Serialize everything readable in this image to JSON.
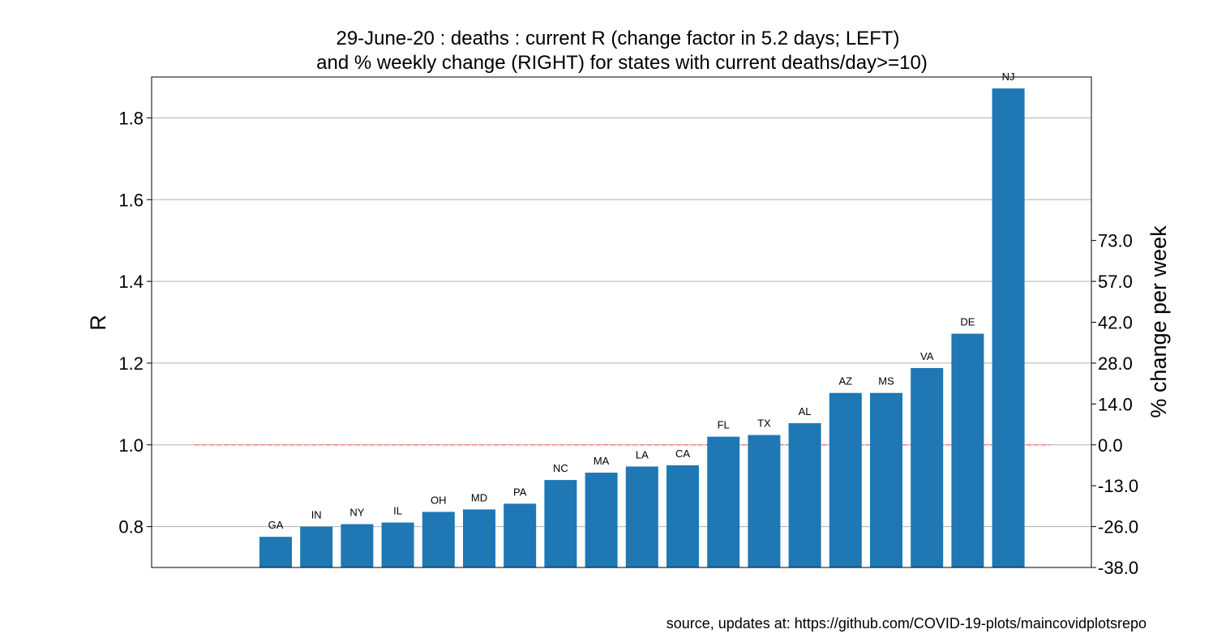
{
  "chart_data": {
    "type": "bar",
    "title_lines": [
      "29-June-20 : deaths : current R (change factor in 5.2 days; LEFT)",
      "and % weekly change (RIGHT) for states with current deaths/day>=10)"
    ],
    "ylabel": "R",
    "ylabel_right": "% change per week",
    "ylim": [
      0.7,
      1.9
    ],
    "y_ticks": [
      "0.8",
      "1.0",
      "1.2",
      "1.4",
      "1.6",
      "1.8"
    ],
    "y_tick_values": [
      0.8,
      1.0,
      1.2,
      1.4,
      1.6,
      1.8
    ],
    "right_ticks": [
      "-38.0",
      "-26.0",
      "-13.0",
      "0.0",
      "14.0",
      "28.0",
      "42.0",
      "57.0",
      "73.0"
    ],
    "right_tick_positions_R": [
      0.7,
      0.8,
      0.9,
      1.0,
      1.1,
      1.2,
      1.3,
      1.4,
      1.5
    ],
    "reference_line": 1.0,
    "reference_color": "#ff7f7f",
    "bar_color": "#1f77b4",
    "grid": true,
    "categories": [
      "GA",
      "IN",
      "NY",
      "IL",
      "OH",
      "MD",
      "PA",
      "NC",
      "MA",
      "LA",
      "CA",
      "FL",
      "TX",
      "AL",
      "AZ",
      "MS",
      "VA",
      "DE",
      "NJ"
    ],
    "values": [
      0.775,
      0.8,
      0.806,
      0.81,
      0.836,
      0.842,
      0.856,
      0.914,
      0.932,
      0.947,
      0.95,
      1.02,
      1.024,
      1.053,
      1.127,
      1.127,
      1.188,
      1.272,
      1.872
    ],
    "source": "source, updates at: https://github.com/COVID-19-plots/maincovidplotsrepo"
  }
}
